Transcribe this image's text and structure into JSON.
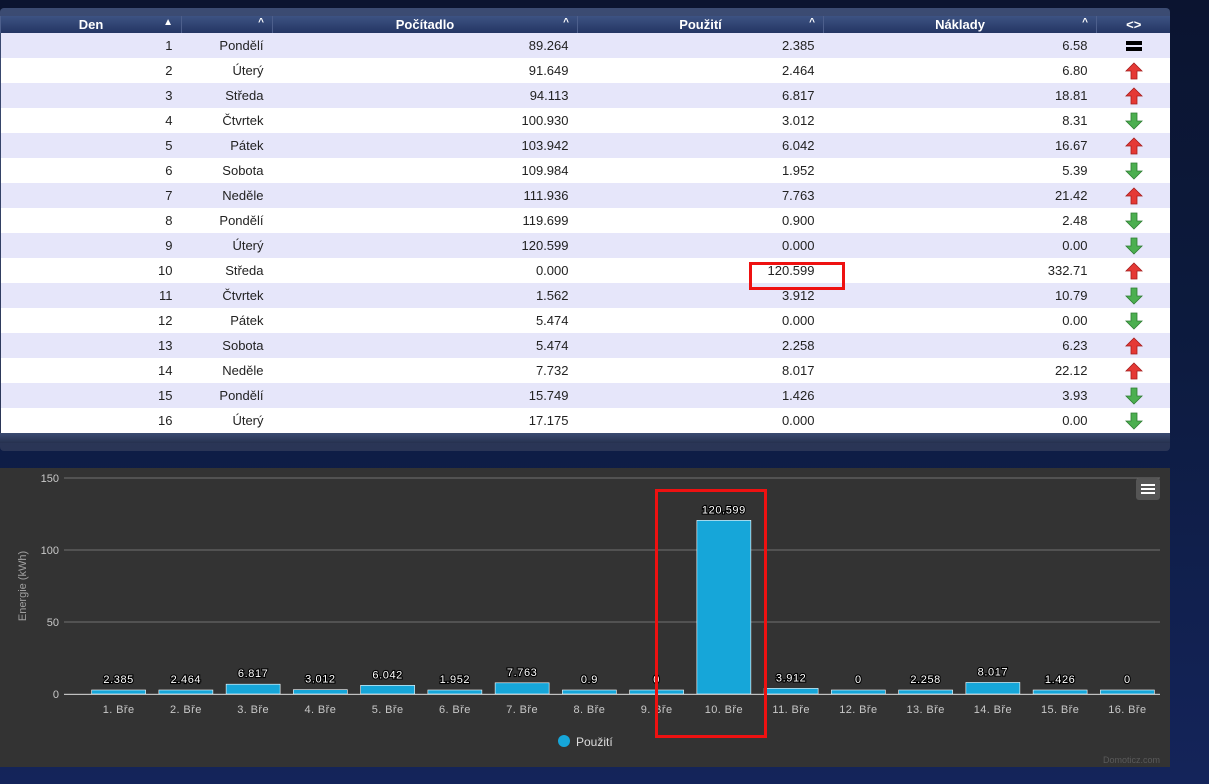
{
  "table": {
    "columns": [
      {
        "label": "Den",
        "arrow": "▲"
      },
      {
        "label": "",
        "arrow": "^"
      },
      {
        "label": "Počítadlo",
        "arrow": "^"
      },
      {
        "label": "Použití",
        "arrow": "^"
      },
      {
        "label": "Náklady",
        "arrow": "^"
      },
      {
        "label": "<>",
        "arrow": ""
      }
    ],
    "rows": [
      {
        "day": "1",
        "weekday": "Pondělí",
        "counter": "89.264",
        "usage": "2.385",
        "cost": "6.58",
        "trend": "equal"
      },
      {
        "day": "2",
        "weekday": "Úterý",
        "counter": "91.649",
        "usage": "2.464",
        "cost": "6.80",
        "trend": "up"
      },
      {
        "day": "3",
        "weekday": "Středa",
        "counter": "94.113",
        "usage": "6.817",
        "cost": "18.81",
        "trend": "up"
      },
      {
        "day": "4",
        "weekday": "Čtvrtek",
        "counter": "100.930",
        "usage": "3.012",
        "cost": "8.31",
        "trend": "down"
      },
      {
        "day": "5",
        "weekday": "Pátek",
        "counter": "103.942",
        "usage": "6.042",
        "cost": "16.67",
        "trend": "up"
      },
      {
        "day": "6",
        "weekday": "Sobota",
        "counter": "109.984",
        "usage": "1.952",
        "cost": "5.39",
        "trend": "down"
      },
      {
        "day": "7",
        "weekday": "Neděle",
        "counter": "111.936",
        "usage": "7.763",
        "cost": "21.42",
        "trend": "up"
      },
      {
        "day": "8",
        "weekday": "Pondělí",
        "counter": "119.699",
        "usage": "0.900",
        "cost": "2.48",
        "trend": "down"
      },
      {
        "day": "9",
        "weekday": "Úterý",
        "counter": "120.599",
        "usage": "0.000",
        "cost": "0.00",
        "trend": "down"
      },
      {
        "day": "10",
        "weekday": "Středa",
        "counter": "0.000",
        "usage": "120.599",
        "cost": "332.71",
        "trend": "up"
      },
      {
        "day": "11",
        "weekday": "Čtvrtek",
        "counter": "1.562",
        "usage": "3.912",
        "cost": "10.79",
        "trend": "down"
      },
      {
        "day": "12",
        "weekday": "Pátek",
        "counter": "5.474",
        "usage": "0.000",
        "cost": "0.00",
        "trend": "down"
      },
      {
        "day": "13",
        "weekday": "Sobota",
        "counter": "5.474",
        "usage": "2.258",
        "cost": "6.23",
        "trend": "up"
      },
      {
        "day": "14",
        "weekday": "Neděle",
        "counter": "7.732",
        "usage": "8.017",
        "cost": "22.12",
        "trend": "up"
      },
      {
        "day": "15",
        "weekday": "Pondělí",
        "counter": "15.749",
        "usage": "1.426",
        "cost": "3.93",
        "trend": "down"
      },
      {
        "day": "16",
        "weekday": "Úterý",
        "counter": "17.175",
        "usage": "0.000",
        "cost": "0.00",
        "trend": "down"
      }
    ]
  },
  "colors": {
    "bar": "#16a6d9",
    "up": "#e53935",
    "down": "#4caf50",
    "highlight": "#ee1111"
  },
  "chart_data": {
    "type": "bar",
    "ylabel": "Energie (kWh)",
    "ylim": [
      0,
      150
    ],
    "yticks": [
      "0",
      "50",
      "100",
      "150"
    ],
    "grid": true,
    "legend_position": "bottom-center",
    "categories": [
      "1. Bře",
      "2. Bře",
      "3. Bře",
      "4. Bře",
      "5. Bře",
      "6. Bře",
      "7. Bře",
      "8. Bře",
      "9. Bře",
      "10. Bře",
      "11. Bře",
      "12. Bře",
      "13. Bře",
      "14. Bře",
      "15. Bře",
      "16. Bře"
    ],
    "series": [
      {
        "name": "Použití",
        "values": [
          2.385,
          2.464,
          6.817,
          3.012,
          6.042,
          1.952,
          7.763,
          0.9,
          0,
          120.599,
          3.912,
          0,
          2.258,
          8.017,
          1.426,
          0
        ],
        "labels": [
          "2.385",
          "2.464",
          "6.817",
          "3.012",
          "6.042",
          "1.952",
          "7.763",
          "0.9",
          "0",
          "120.599",
          "3.912",
          "0",
          "2.258",
          "8.017",
          "1.426",
          "0"
        ]
      }
    ],
    "credit": "Domoticz.com"
  }
}
